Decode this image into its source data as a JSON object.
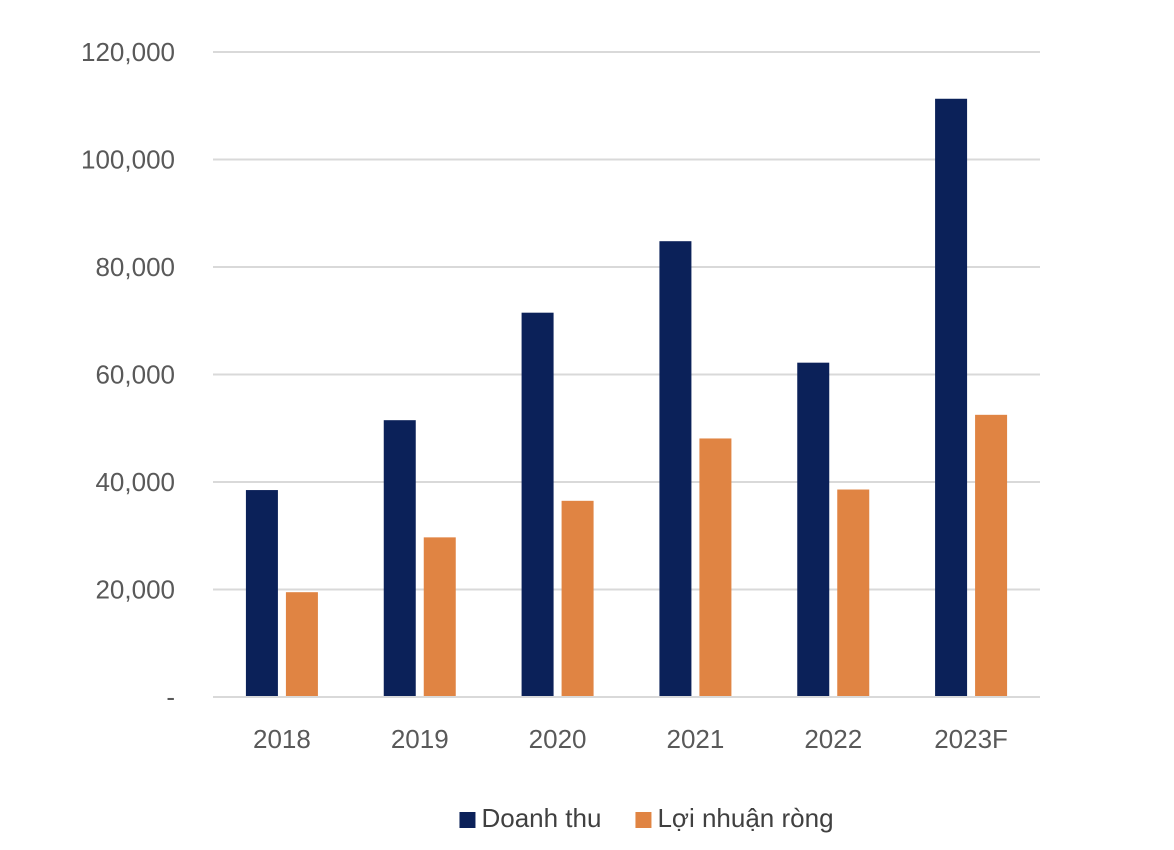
{
  "chart_data": {
    "type": "bar",
    "categories": [
      "2018",
      "2019",
      "2020",
      "2021",
      "2022",
      "2023F"
    ],
    "series": [
      {
        "name": "Doanh thu",
        "color": "#0b2159",
        "values": [
          38500,
          51500,
          71500,
          84800,
          62200,
          111300
        ]
      },
      {
        "name": "Lợi nhuận ròng",
        "color": "#e08443",
        "values": [
          19500,
          29700,
          36500,
          48100,
          38600,
          52500
        ]
      }
    ],
    "ylim": [
      0,
      120000
    ],
    "yticks": [
      0,
      20000,
      40000,
      60000,
      80000,
      100000,
      120000
    ],
    "ytick_labels": [
      "-",
      "20,000",
      "40,000",
      "60,000",
      "80,000",
      "100,000",
      "120,000"
    ],
    "grid": true,
    "legend_position": "bottom"
  }
}
